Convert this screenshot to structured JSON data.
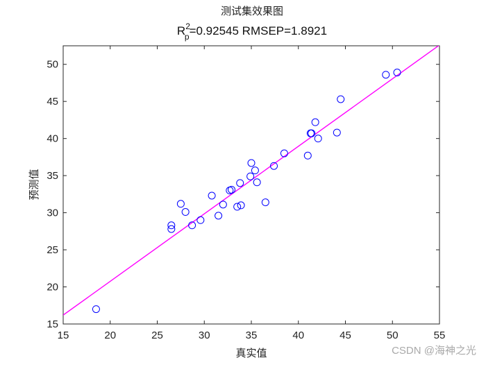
{
  "chart_data": {
    "type": "scatter",
    "title": "测试集效果图",
    "subtitle": {
      "r_symbol": "R",
      "r_superscript": "2",
      "r_subscript": "p",
      "rest": "=0.92545  RMSEP=1.8921"
    },
    "xlabel": "真实值",
    "ylabel": "预测值",
    "xlim": [
      15,
      55
    ],
    "ylim": [
      15,
      52.5
    ],
    "x_ticks": [
      15,
      20,
      25,
      30,
      35,
      40,
      45,
      50,
      55
    ],
    "y_ticks": [
      15,
      20,
      25,
      30,
      35,
      40,
      45,
      50
    ],
    "grid": false,
    "marker_color": "#0000ff",
    "line_color": "#ff00ff",
    "fit_line": {
      "x": [
        15,
        55
      ],
      "y": [
        16.2,
        52.6
      ]
    },
    "series": [
      {
        "x": [
          18.5,
          26.5,
          26.5,
          27.5,
          28.0,
          28.7,
          29.6,
          30.8,
          31.5,
          32.0,
          32.7,
          32.9,
          33.5,
          33.8,
          33.9,
          34.9,
          35.0,
          35.4,
          35.6,
          36.5,
          37.4,
          38.5,
          41.0,
          41.3,
          41.4,
          41.8,
          42.1,
          44.1,
          44.5,
          49.3,
          50.5
        ],
        "y": [
          17.0,
          27.8,
          28.3,
          31.2,
          30.1,
          28.3,
          29.0,
          32.3,
          29.6,
          31.1,
          33.0,
          33.1,
          30.8,
          34.0,
          31.0,
          34.9,
          36.7,
          35.7,
          34.1,
          31.4,
          36.3,
          38.0,
          37.7,
          40.7,
          40.7,
          42.2,
          40.0,
          40.8,
          45.3,
          48.6,
          48.9
        ]
      }
    ]
  },
  "watermark": "CSDN @海神之光"
}
